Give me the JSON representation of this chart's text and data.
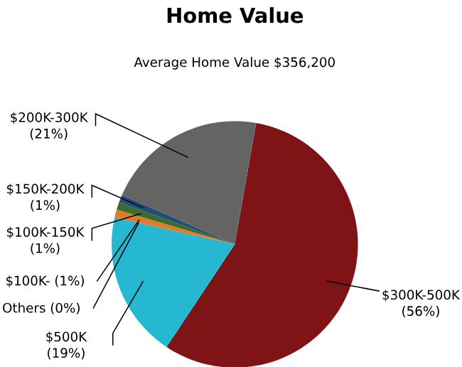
{
  "chart_data": {
    "type": "pie",
    "title": "Home Value",
    "subtitle": "Average Home Value  $356,200",
    "categories": [
      "$300K-500K",
      "$500K",
      "Others",
      "$100K-",
      "$100K-150K",
      "$150K-200K",
      "$200K-300K"
    ],
    "values": [
      56,
      19,
      0,
      1,
      1,
      1,
      21
    ],
    "value_labels": [
      "(56%)",
      "(19%)",
      "(0%)",
      "(1%)",
      "(1%)",
      "(1%)",
      "(21%)"
    ],
    "colors": [
      "#7f1416",
      "#25b8d0",
      "#9a9a9a",
      "#e07b2a",
      "#3f6b2a",
      "#1f4e79",
      "#646464"
    ]
  }
}
